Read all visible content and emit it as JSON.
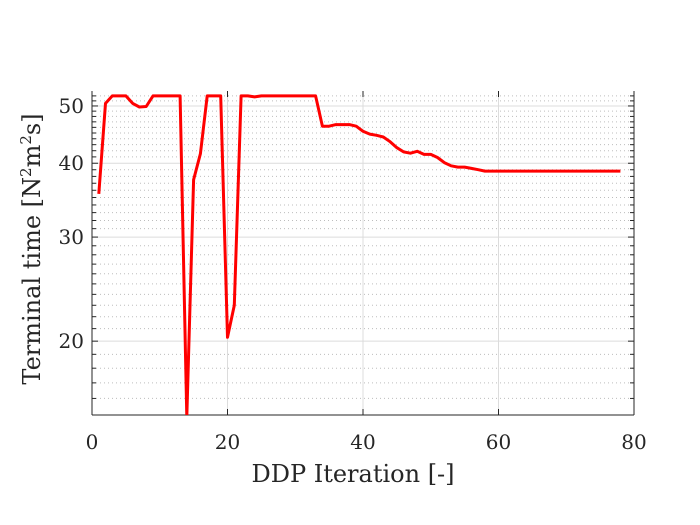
{
  "chart_data": {
    "type": "line",
    "xlabel": "DDP Iteration [-]",
    "ylabel_parts": [
      "Terminal time [N",
      "2",
      "m",
      "2",
      "s]"
    ],
    "xlim": [
      0,
      80
    ],
    "ylim": [
      15,
      53
    ],
    "yscale": "log",
    "x_ticks": [
      0,
      20,
      40,
      60,
      80
    ],
    "x_tick_labels": [
      "0",
      "20",
      "40",
      "60",
      "80"
    ],
    "y_ticks": [
      20,
      30,
      40,
      50
    ],
    "y_tick_labels": [
      "20",
      "30",
      "40",
      "50"
    ],
    "y_minor_ticks": [
      16,
      17,
      18,
      19,
      21,
      22,
      23,
      24,
      25,
      26,
      27,
      28,
      29,
      31,
      32,
      33,
      34,
      35,
      36,
      37,
      38,
      39,
      41,
      42,
      43,
      44,
      45,
      46,
      47,
      48,
      49,
      51,
      52
    ],
    "grid": true,
    "series": [
      {
        "color": "#ff0000",
        "x": [
          1,
          2,
          3,
          4,
          5,
          6,
          7,
          8,
          9,
          10,
          11,
          12,
          13,
          14,
          15,
          16,
          17,
          18,
          19,
          20,
          21,
          22,
          23,
          24,
          25,
          26,
          27,
          28,
          29,
          30,
          31,
          32,
          33,
          34,
          35,
          36,
          37,
          38,
          39,
          40,
          41,
          42,
          43,
          44,
          45,
          46,
          47,
          48,
          49,
          50,
          51,
          52,
          53,
          54,
          55,
          56,
          57,
          58,
          59,
          60,
          61,
          62,
          63,
          64,
          65,
          66,
          67,
          68,
          69,
          70,
          71,
          72,
          73,
          74,
          75,
          76,
          77,
          78
        ],
        "y": [
          35.5,
          50.5,
          52,
          52,
          52,
          50.5,
          49.8,
          49.9,
          52,
          52,
          52,
          52,
          52,
          15,
          37.5,
          41.5,
          52,
          52,
          52,
          20.3,
          23,
          52,
          52,
          51.8,
          52,
          52,
          52,
          52,
          52,
          52,
          52,
          52,
          52,
          46.2,
          46.2,
          46.5,
          46.5,
          46.5,
          46.2,
          45.3,
          44.8,
          44.6,
          44.3,
          43.5,
          42.5,
          41.8,
          41.6,
          41.9,
          41.4,
          41.4,
          40.9,
          40.1,
          39.6,
          39.4,
          39.4,
          39.2,
          39.0,
          38.8,
          38.8,
          38.8,
          38.8,
          38.8,
          38.8,
          38.8,
          38.8,
          38.8,
          38.8,
          38.8,
          38.8,
          38.8,
          38.8,
          38.8,
          38.8,
          38.8,
          38.8,
          38.8,
          38.8,
          38.8
        ]
      }
    ]
  }
}
